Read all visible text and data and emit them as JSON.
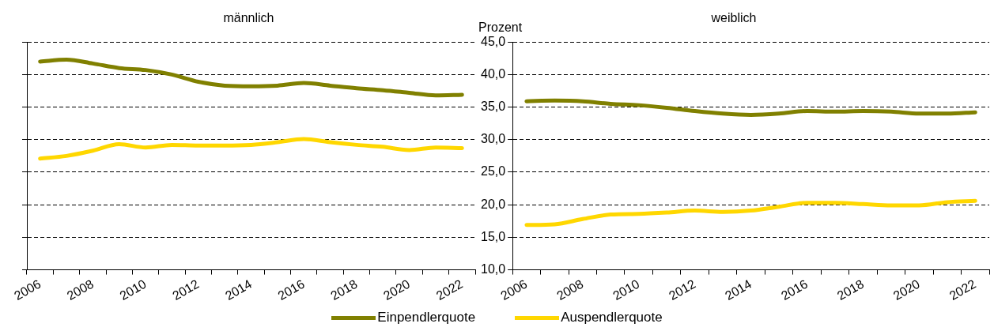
{
  "chart_data": [
    {
      "type": "line",
      "title": "männlich",
      "categories": [
        "2006",
        null,
        "2008",
        null,
        "2010",
        null,
        "2012",
        null,
        "2014",
        null,
        "2016",
        null,
        "2018",
        null,
        "2020",
        null,
        "2022"
      ],
      "series": [
        {
          "name": "Einpendlerquote",
          "color": "#808000",
          "values": [
            42.0,
            42.3,
            41.7,
            41.0,
            40.7,
            40.0,
            38.9,
            38.3,
            38.2,
            38.3,
            38.7,
            38.3,
            37.9,
            37.6,
            37.2,
            36.8,
            36.9
          ]
        },
        {
          "name": "Auspendlerquote",
          "color": "#ffd700",
          "values": [
            27.1,
            27.5,
            28.3,
            29.3,
            28.8,
            29.2,
            29.1,
            29.1,
            29.2,
            29.6,
            30.1,
            29.6,
            29.2,
            28.9,
            28.4,
            28.8,
            28.7
          ]
        }
      ],
      "ylim": [
        10,
        45
      ],
      "yticks": [
        10,
        15,
        20,
        25,
        30,
        35,
        40,
        45
      ],
      "tick_labels": "x",
      "grid": "y",
      "legend": "bottom",
      "marker": "none"
    },
    {
      "type": "line",
      "title": "weiblich",
      "ylabel": "Prozent",
      "categories": [
        "2006",
        null,
        "2008",
        null,
        "2010",
        null,
        "2012",
        null,
        "2014",
        null,
        "2016",
        null,
        "2018",
        null,
        "2020",
        null,
        "2022"
      ],
      "series": [
        {
          "name": "Einpendlerquote",
          "color": "#808000",
          "values": [
            35.9,
            36.0,
            35.9,
            35.5,
            35.3,
            34.9,
            34.4,
            34.0,
            33.8,
            34.0,
            34.4,
            34.3,
            34.4,
            34.3,
            34.0,
            34.0,
            34.2
          ]
        },
        {
          "name": "Auspendlerquote",
          "color": "#ffd700",
          "values": [
            16.9,
            17.0,
            17.8,
            18.5,
            18.6,
            18.8,
            19.1,
            18.9,
            19.1,
            19.7,
            20.3,
            20.3,
            20.1,
            19.9,
            19.9,
            20.4,
            20.6
          ]
        }
      ],
      "ylim": [
        10,
        45
      ],
      "yticks": [
        {
          "value": 10,
          "label": "10,0"
        },
        {
          "value": 15,
          "label": "15,0"
        },
        {
          "value": 20,
          "label": "20,0"
        },
        {
          "value": 25,
          "label": "25,0"
        },
        {
          "value": 30,
          "label": "30,0"
        },
        {
          "value": 35,
          "label": "35,0"
        },
        {
          "value": 40,
          "label": "40,0"
        },
        {
          "value": 45,
          "label": "45,0"
        }
      ],
      "grid": "y",
      "legend": "bottom",
      "marker": "none"
    }
  ]
}
